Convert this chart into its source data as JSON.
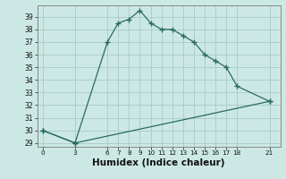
{
  "xlabel": "Humidex (Indice chaleur)",
  "background_color": "#cce8e4",
  "grid_color": "#aacfca",
  "line_color": "#2a6b62",
  "line1_x": [
    0,
    3,
    6,
    7,
    8,
    9,
    10,
    11,
    12,
    13,
    14,
    15,
    16,
    17,
    18,
    21
  ],
  "line1_y": [
    30.0,
    29.0,
    37.0,
    38.5,
    38.8,
    39.5,
    38.5,
    38.0,
    38.0,
    37.5,
    37.0,
    36.0,
    35.5,
    35.0,
    33.5,
    32.3
  ],
  "line2_x": [
    0,
    3,
    21
  ],
  "line2_y": [
    30.0,
    29.0,
    32.3
  ],
  "xlim": [
    -0.5,
    22
  ],
  "ylim": [
    28.7,
    39.9
  ],
  "yticks": [
    29,
    30,
    31,
    32,
    33,
    34,
    35,
    36,
    37,
    38,
    39
  ],
  "xticks": [
    0,
    3,
    6,
    7,
    8,
    9,
    10,
    11,
    12,
    13,
    14,
    15,
    16,
    17,
    18,
    21
  ],
  "marker": "+",
  "marker_size": 4,
  "linewidth": 0.9
}
